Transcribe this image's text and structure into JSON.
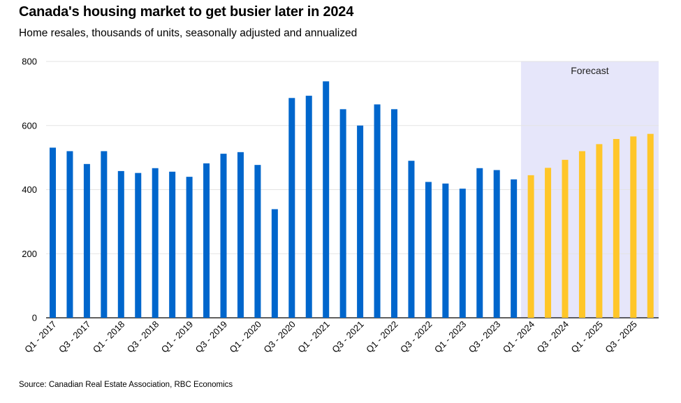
{
  "header": {
    "title": "Canada's housing market to get busier later in 2024",
    "subtitle": "Home resales, thousands of units, seasonally adjusted and annualized"
  },
  "footer": {
    "source": "Source: Canadian Real Estate Association, RBC Economics"
  },
  "colors": {
    "actual": "#0066cc",
    "forecast": "#ffc629",
    "forecast_band": "#e6e6fa",
    "grid": "#e3e3e3"
  },
  "chart_data": {
    "type": "bar",
    "title": "Canada's housing market to get busier later in 2024",
    "subtitle": "Home resales, thousands of units, seasonally adjusted and annualized",
    "xlabel": "",
    "ylabel": "",
    "ylim": [
      0,
      800
    ],
    "yticks": [
      0,
      200,
      400,
      600,
      800
    ],
    "grid": true,
    "forecast_label": "Forecast",
    "forecast_start_index": 28,
    "categories": [
      "Q1 - 2017",
      "Q2 - 2017",
      "Q3 - 2017",
      "Q4 - 2017",
      "Q1 - 2018",
      "Q2 - 2018",
      "Q3 - 2018",
      "Q4 - 2018",
      "Q1 - 2019",
      "Q2 - 2019",
      "Q3 - 2019",
      "Q4 - 2019",
      "Q1 - 2020",
      "Q2 - 2020",
      "Q3 - 2020",
      "Q4 - 2020",
      "Q1 - 2021",
      "Q2 - 2021",
      "Q3 - 2021",
      "Q4 - 2021",
      "Q1 - 2022",
      "Q2 - 2022",
      "Q3 - 2022",
      "Q4 - 2022",
      "Q1 - 2023",
      "Q2 - 2023",
      "Q3 - 2023",
      "Q4 - 2023",
      "Q1 - 2024",
      "Q2 - 2024",
      "Q3 - 2024",
      "Q4 - 2024",
      "Q1 - 2025",
      "Q2 - 2025",
      "Q3 - 2025",
      "Q4 - 2025"
    ],
    "tick_labels": [
      "Q1 - 2017",
      "Q3 - 2017",
      "Q1 - 2018",
      "Q3 - 2018",
      "Q1 - 2019",
      "Q3 - 2019",
      "Q1 - 2020",
      "Q3 - 2020",
      "Q1 - 2021",
      "Q3 - 2021",
      "Q1 - 2022",
      "Q3 - 2022",
      "Q1 - 2023",
      "Q3 - 2023",
      "Q1 - 2024",
      "Q3 - 2024",
      "Q1 - 2025",
      "Q3 - 2025"
    ],
    "values": [
      531,
      520,
      480,
      520,
      458,
      452,
      467,
      456,
      440,
      482,
      512,
      517,
      477,
      339,
      686,
      693,
      738,
      651,
      600,
      666,
      651,
      490,
      424,
      419,
      403,
      467,
      461,
      432,
      445,
      468,
      493,
      520,
      542,
      558,
      566,
      574
    ]
  }
}
